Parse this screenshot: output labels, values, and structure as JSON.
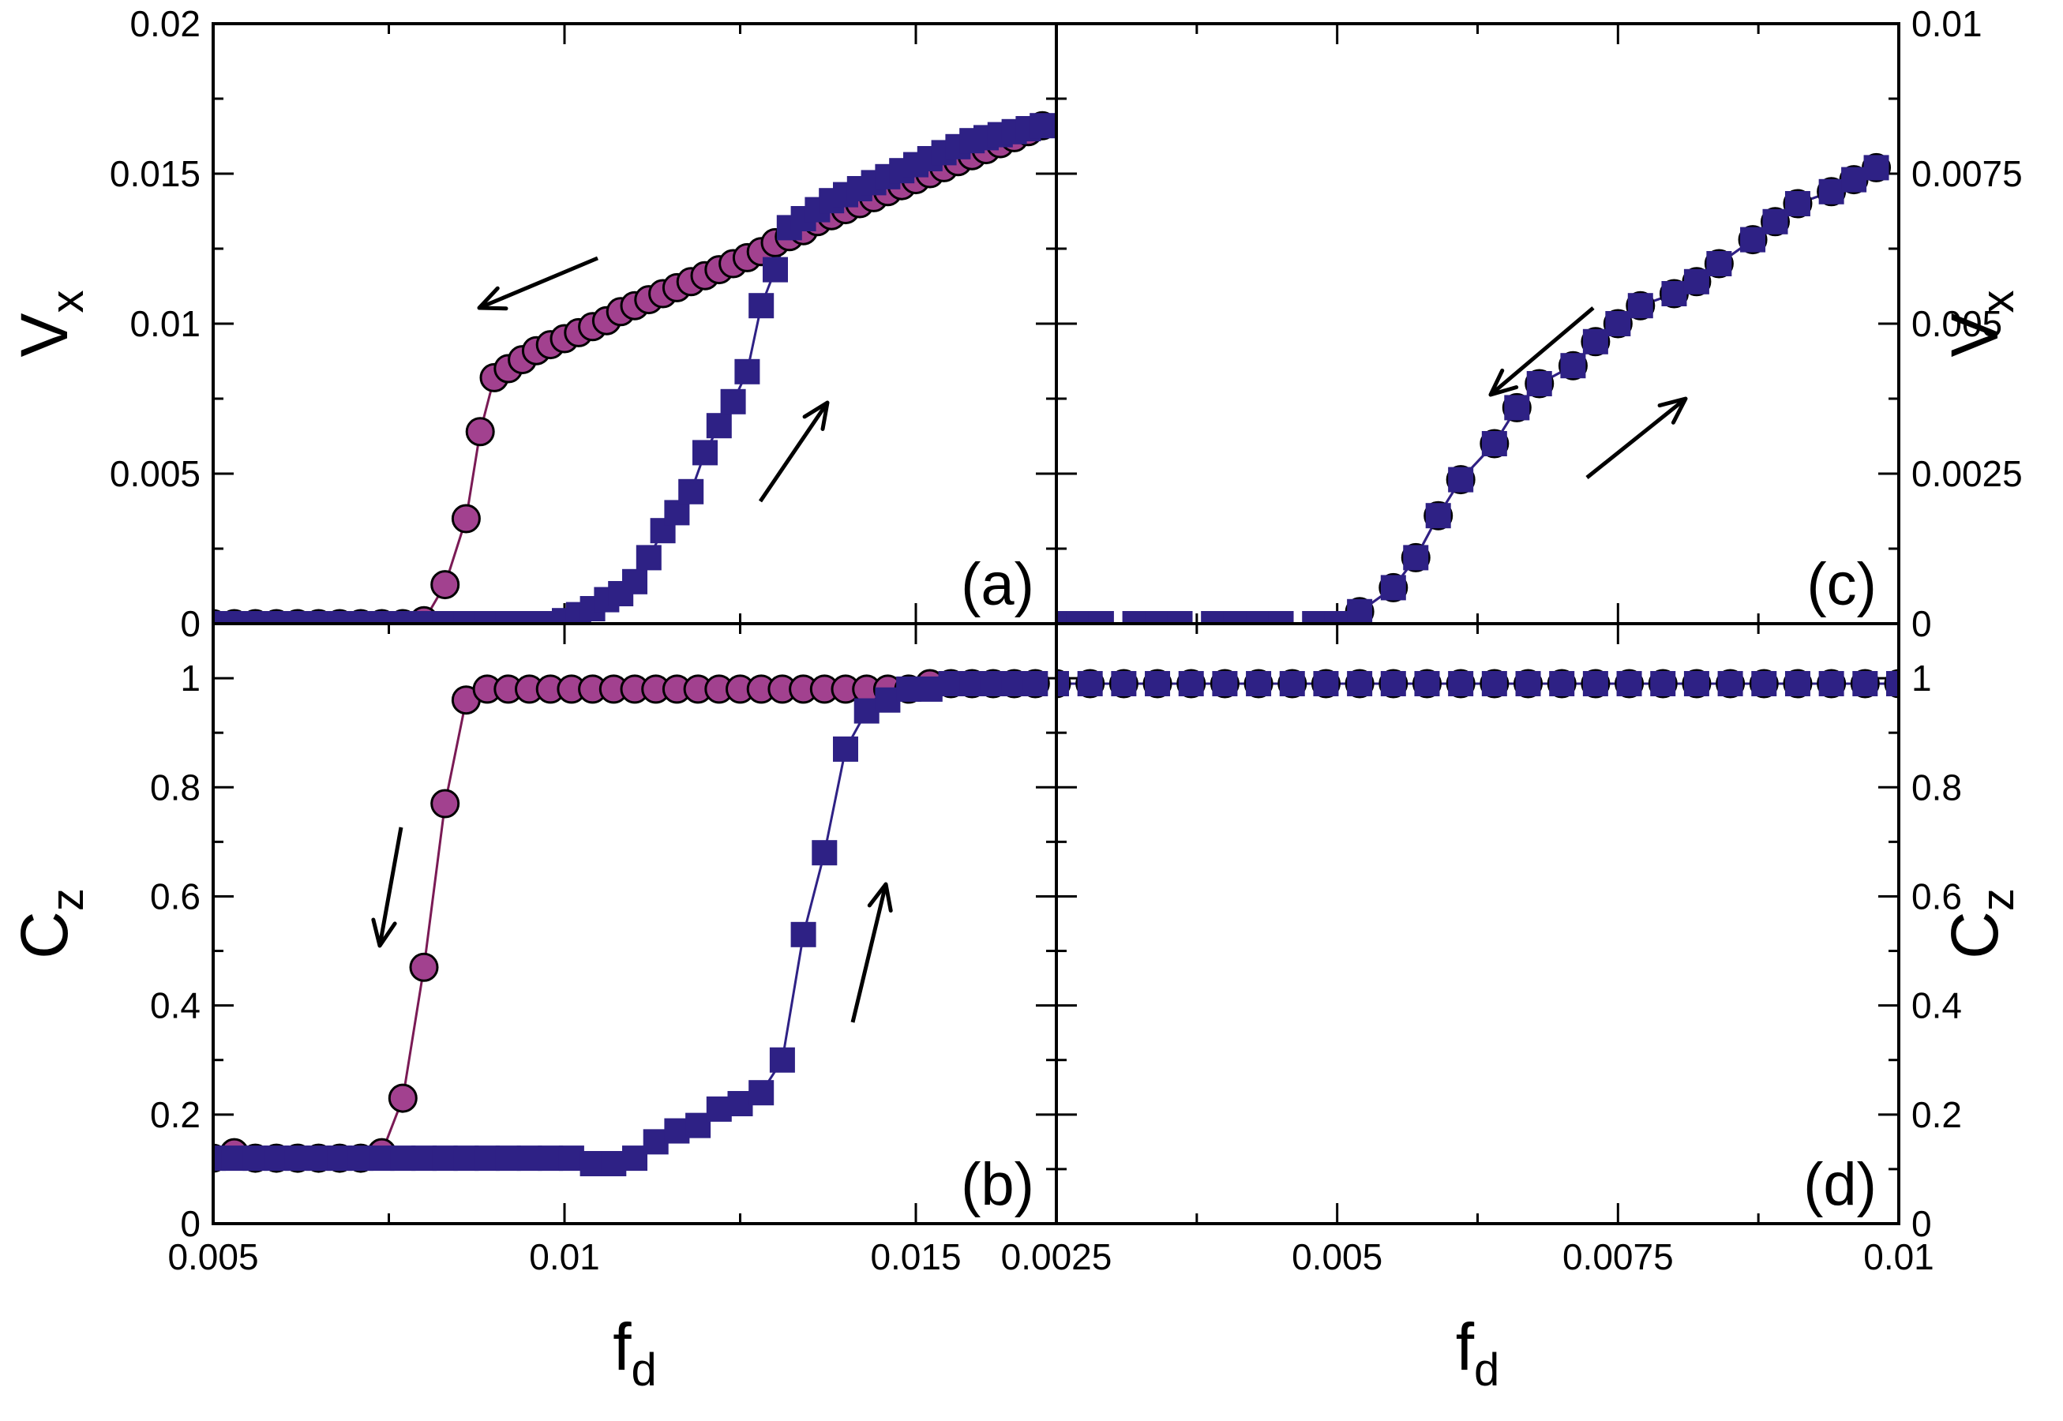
{
  "colors": {
    "decreasing": "#a2418f",
    "increasing": "#2e2185",
    "frame": "#000000"
  },
  "chart_data": [
    {
      "panel": "(a)",
      "type": "line",
      "xlabel": "f",
      "xlabel_sub": "d",
      "ylabel": "V",
      "ylabel_sub": "x",
      "xlim": [
        0.005,
        0.017
      ],
      "ylim": [
        0,
        0.02
      ],
      "xticks": [
        "0.005",
        "0.01",
        "0.015"
      ],
      "yticks": [
        "0",
        "0.005",
        "0.01",
        "0.015",
        "0.02"
      ],
      "series": [
        {
          "name": "decreasing",
          "marker": "circle",
          "x": [
            0.005,
            0.0053,
            0.0056,
            0.0059,
            0.0062,
            0.0065,
            0.0068,
            0.0071,
            0.0074,
            0.0077,
            0.008,
            0.0083,
            0.0086,
            0.0088,
            0.009,
            0.0092,
            0.0094,
            0.0096,
            0.0098,
            0.01,
            0.0102,
            0.0104,
            0.0106,
            0.0108,
            0.011,
            0.0112,
            0.0114,
            0.0116,
            0.0118,
            0.012,
            0.0122,
            0.0124,
            0.0126,
            0.0128,
            0.013,
            0.0132,
            0.0134,
            0.0136,
            0.0138,
            0.014,
            0.0142,
            0.0144,
            0.0146,
            0.0148,
            0.015,
            0.0152,
            0.0154,
            0.0156,
            0.0158,
            0.016,
            0.0162,
            0.0164,
            0.0166,
            0.0168
          ],
          "y": [
            0.0,
            0.0,
            0.0,
            0.0,
            0.0,
            0.0,
            0.0,
            0.0,
            0.0,
            0.0,
            0.0001,
            0.0013,
            0.0035,
            0.0064,
            0.0082,
            0.0085,
            0.0088,
            0.0091,
            0.0093,
            0.0095,
            0.0097,
            0.0099,
            0.0101,
            0.0104,
            0.0106,
            0.0108,
            0.011,
            0.0112,
            0.0114,
            0.0116,
            0.0118,
            0.012,
            0.0122,
            0.0124,
            0.0127,
            0.0129,
            0.0131,
            0.0134,
            0.0136,
            0.0138,
            0.014,
            0.0142,
            0.0144,
            0.0146,
            0.0148,
            0.015,
            0.0152,
            0.0154,
            0.0156,
            0.0158,
            0.016,
            0.0162,
            0.0164,
            0.0166
          ]
        },
        {
          "name": "increasing",
          "marker": "square",
          "x": [
            0.005,
            0.0053,
            0.0056,
            0.0059,
            0.0062,
            0.0065,
            0.0068,
            0.0071,
            0.0074,
            0.0077,
            0.008,
            0.0083,
            0.0086,
            0.0089,
            0.0092,
            0.0095,
            0.0098,
            0.01,
            0.0102,
            0.0104,
            0.0106,
            0.0108,
            0.011,
            0.0112,
            0.0114,
            0.0116,
            0.0118,
            0.012,
            0.0122,
            0.0124,
            0.0126,
            0.0128,
            0.013,
            0.0132,
            0.0134,
            0.0136,
            0.0138,
            0.014,
            0.0142,
            0.0144,
            0.0146,
            0.0148,
            0.015,
            0.0152,
            0.0154,
            0.0156,
            0.0158,
            0.016,
            0.0162,
            0.0164,
            0.0166,
            0.0168
          ],
          "y": [
            0.0,
            0.0,
            0.0,
            0.0,
            0.0,
            0.0,
            0.0,
            0.0,
            0.0,
            0.0,
            0.0,
            0.0,
            0.0,
            0.0,
            0.0,
            0.0,
            0.0,
            0.0001,
            0.0003,
            0.0005,
            0.0008,
            0.001,
            0.0014,
            0.0022,
            0.0031,
            0.0037,
            0.0044,
            0.0057,
            0.0066,
            0.0074,
            0.0084,
            0.0106,
            0.0118,
            0.0132,
            0.0135,
            0.0138,
            0.0141,
            0.0143,
            0.0145,
            0.0147,
            0.0149,
            0.0151,
            0.0153,
            0.0155,
            0.0157,
            0.0159,
            0.0161,
            0.0162,
            0.0163,
            0.0164,
            0.0165,
            0.0166
          ]
        }
      ]
    },
    {
      "panel": "(b)",
      "type": "line",
      "xlabel": "f",
      "xlabel_sub": "d",
      "ylabel": "C",
      "ylabel_sub": "z",
      "xlim": [
        0.005,
        0.017
      ],
      "ylim": [
        0,
        1.1
      ],
      "xticks": [
        "0.005",
        "0.01",
        "0.015"
      ],
      "yticks": [
        "0",
        "0.2",
        "0.4",
        "0.6",
        "0.8",
        "1"
      ],
      "series": [
        {
          "name": "decreasing",
          "marker": "circle",
          "x": [
            0.005,
            0.0053,
            0.0056,
            0.0059,
            0.0062,
            0.0065,
            0.0068,
            0.0071,
            0.0074,
            0.0077,
            0.008,
            0.0083,
            0.0086,
            0.0089,
            0.0092,
            0.0095,
            0.0098,
            0.0101,
            0.0104,
            0.0107,
            0.011,
            0.0113,
            0.0116,
            0.0119,
            0.0122,
            0.0125,
            0.0128,
            0.0131,
            0.0134,
            0.0137,
            0.014,
            0.0143,
            0.0146,
            0.0149,
            0.0152,
            0.0155,
            0.0158,
            0.0161,
            0.0164,
            0.0167
          ],
          "y": [
            0.12,
            0.13,
            0.12,
            0.12,
            0.12,
            0.12,
            0.12,
            0.12,
            0.13,
            0.23,
            0.47,
            0.77,
            0.96,
            0.98,
            0.98,
            0.98,
            0.98,
            0.98,
            0.98,
            0.98,
            0.98,
            0.98,
            0.98,
            0.98,
            0.98,
            0.98,
            0.98,
            0.98,
            0.98,
            0.98,
            0.98,
            0.98,
            0.98,
            0.98,
            0.99,
            0.99,
            0.99,
            0.99,
            0.99,
            0.99
          ]
        },
        {
          "name": "increasing",
          "marker": "square",
          "x": [
            0.005,
            0.0053,
            0.0056,
            0.0059,
            0.0062,
            0.0065,
            0.0068,
            0.0071,
            0.0074,
            0.0077,
            0.008,
            0.0083,
            0.0086,
            0.0089,
            0.0092,
            0.0095,
            0.0098,
            0.0101,
            0.0104,
            0.0107,
            0.011,
            0.0113,
            0.0116,
            0.0119,
            0.0122,
            0.0125,
            0.0128,
            0.0131,
            0.0134,
            0.0137,
            0.014,
            0.0143,
            0.0146,
            0.0149,
            0.0152,
            0.0155,
            0.0158,
            0.0161,
            0.0164,
            0.0167
          ],
          "y": [
            0.12,
            0.12,
            0.12,
            0.12,
            0.12,
            0.12,
            0.12,
            0.12,
            0.12,
            0.12,
            0.12,
            0.12,
            0.12,
            0.12,
            0.12,
            0.12,
            0.12,
            0.12,
            0.11,
            0.11,
            0.12,
            0.15,
            0.17,
            0.18,
            0.21,
            0.22,
            0.24,
            0.3,
            0.53,
            0.68,
            0.87,
            0.94,
            0.96,
            0.98,
            0.98,
            0.99,
            0.99,
            0.99,
            0.99,
            0.99
          ]
        }
      ]
    },
    {
      "panel": "(c)",
      "type": "line",
      "xlabel": "f",
      "xlabel_sub": "d",
      "ylabel": "V",
      "ylabel_sub": "x",
      "xlim": [
        0.0025,
        0.01
      ],
      "ylim": [
        0,
        0.01
      ],
      "xticks": [
        "0.0025",
        "0.005",
        "0.0075",
        "0.01"
      ],
      "yticks": [
        "0",
        "0.0025",
        "0.005",
        "0.0075",
        "0.01"
      ],
      "series": [
        {
          "name": "decreasing",
          "marker": "circle",
          "x": [
            0.0052,
            0.0055,
            0.0057,
            0.0059,
            0.0061,
            0.0064,
            0.0066,
            0.0068,
            0.0071,
            0.0073,
            0.0075,
            0.0077,
            0.008,
            0.0082,
            0.0084,
            0.0087,
            0.0089,
            0.0091,
            0.0094,
            0.0096,
            0.0098
          ],
          "y": [
            0.0002,
            0.0006,
            0.0011,
            0.0018,
            0.0024,
            0.003,
            0.0036,
            0.004,
            0.0043,
            0.0047,
            0.005,
            0.0053,
            0.0055,
            0.0057,
            0.006,
            0.0064,
            0.0067,
            0.007,
            0.0072,
            0.0074,
            0.0076
          ]
        },
        {
          "name": "increasing",
          "marker": "square",
          "x": [
            0.0025,
            0.0027,
            0.0029,
            0.0032,
            0.0034,
            0.0036,
            0.0039,
            0.0041,
            0.0043,
            0.0045,
            0.0048,
            0.005,
            0.0052,
            0.0055,
            0.0057,
            0.0059,
            0.0061,
            0.0064,
            0.0066,
            0.0068,
            0.0071,
            0.0073,
            0.0075,
            0.0077,
            0.008,
            0.0082,
            0.0084,
            0.0087,
            0.0089,
            0.0091,
            0.0094,
            0.0096,
            0.0098
          ],
          "y": [
            0.0,
            0.0,
            0.0,
            0.0,
            0.0,
            0.0,
            0.0,
            0.0,
            0.0,
            0.0,
            0.0,
            0.0,
            0.0002,
            0.0006,
            0.0011,
            0.0018,
            0.0024,
            0.003,
            0.0036,
            0.004,
            0.0043,
            0.0047,
            0.005,
            0.0053,
            0.0055,
            0.0057,
            0.006,
            0.0064,
            0.0067,
            0.007,
            0.0072,
            0.0074,
            0.0076
          ]
        }
      ]
    },
    {
      "panel": "(d)",
      "type": "line",
      "xlabel": "f",
      "xlabel_sub": "d",
      "ylabel": "C",
      "ylabel_sub": "z",
      "xlim": [
        0.0025,
        0.01
      ],
      "ylim": [
        0,
        1.1
      ],
      "xticks": [
        "0.0025",
        "0.005",
        "0.0075",
        "0.01"
      ],
      "yticks": [
        "0",
        "0.2",
        "0.4",
        "0.6",
        "0.8",
        "1"
      ],
      "series": [
        {
          "name": "decreasing",
          "marker": "circle",
          "x": [
            0.0025,
            0.0028,
            0.0031,
            0.0034,
            0.0037,
            0.004,
            0.0043,
            0.0046,
            0.0049,
            0.0052,
            0.0055,
            0.0058,
            0.0061,
            0.0064,
            0.0067,
            0.007,
            0.0073,
            0.0076,
            0.0079,
            0.0082,
            0.0085,
            0.0088,
            0.0091,
            0.0094,
            0.0097,
            0.01
          ],
          "y": [
            0.99,
            0.99,
            0.99,
            0.99,
            0.99,
            0.99,
            0.99,
            0.99,
            0.99,
            0.99,
            0.99,
            0.99,
            0.99,
            0.99,
            0.99,
            0.99,
            0.99,
            0.99,
            0.99,
            0.99,
            0.99,
            0.99,
            0.99,
            0.99,
            0.99,
            0.99
          ]
        },
        {
          "name": "increasing",
          "marker": "square",
          "x": [
            0.0025,
            0.0028,
            0.0031,
            0.0034,
            0.0037,
            0.004,
            0.0043,
            0.0046,
            0.0049,
            0.0052,
            0.0055,
            0.0058,
            0.0061,
            0.0064,
            0.0067,
            0.007,
            0.0073,
            0.0076,
            0.0079,
            0.0082,
            0.0085,
            0.0088,
            0.0091,
            0.0094,
            0.0097,
            0.01
          ],
          "y": [
            0.99,
            0.99,
            0.99,
            0.99,
            0.99,
            0.99,
            0.99,
            0.99,
            0.99,
            0.99,
            0.99,
            0.99,
            0.99,
            0.99,
            0.99,
            0.99,
            0.99,
            0.99,
            0.99,
            0.99,
            0.99,
            0.99,
            0.99,
            0.99,
            0.99,
            0.99
          ]
        }
      ]
    }
  ]
}
